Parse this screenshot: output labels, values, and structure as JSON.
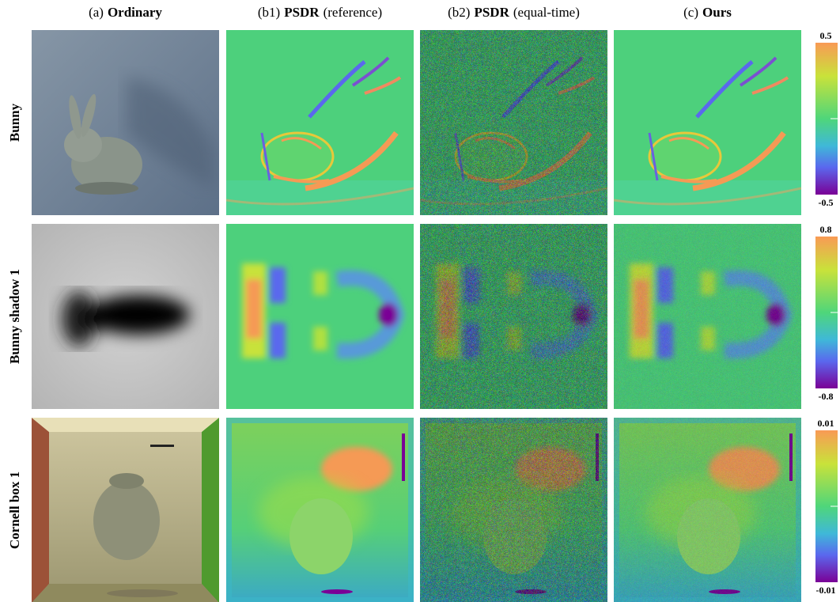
{
  "columns": [
    {
      "prefix": "(a)",
      "bold": "Ordinary"
    },
    {
      "prefix": "(b1)",
      "bold": "PSDR",
      "suffix": "(reference)"
    },
    {
      "prefix": "(b2)",
      "bold": "PSDR",
      "suffix": "(equal-time)"
    },
    {
      "prefix": "(c)",
      "bold": "Ours"
    }
  ],
  "rows": [
    {
      "label": "Bunny",
      "colorbar": {
        "max": 0.5,
        "min": -0.5
      }
    },
    {
      "label": "Bunny shadow 1",
      "colorbar": {
        "max": 0.8,
        "min": -0.8
      }
    },
    {
      "label": "Cornell box 1",
      "colorbar": {
        "max": 0.01,
        "min": -0.01
      }
    }
  ]
}
